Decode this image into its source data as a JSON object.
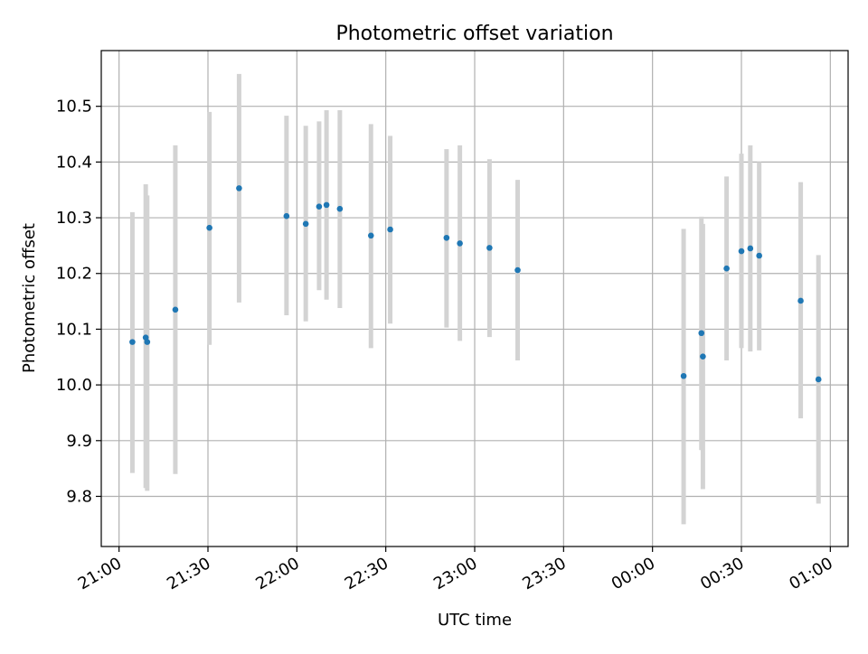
{
  "chart_data": {
    "type": "scatter",
    "title": "Photometric offset variation",
    "xlabel": "UTC time",
    "ylabel": "Photometric offset",
    "x_unit": "UTC time",
    "grid": true,
    "marker_color": "#1f77b4",
    "errorbar_color": "#d3d3d3",
    "xlim": [
      "20:54",
      "01:06"
    ],
    "ylim": [
      9.71,
      10.6
    ],
    "xticks": [
      "21:00",
      "21:30",
      "22:00",
      "22:30",
      "23:00",
      "23:30",
      "00:00",
      "00:30",
      "01:00"
    ],
    "yticks": [
      9.8,
      9.9,
      10.0,
      10.1,
      10.2,
      10.3,
      10.4,
      10.5
    ],
    "yticks_text": [
      "9.8",
      "9.9",
      "10.0",
      "10.1",
      "10.2",
      "10.3",
      "10.4",
      "10.5"
    ],
    "points": [
      {
        "x": "21:04.5",
        "y": 10.077,
        "ylow": 9.842,
        "yhigh": 10.31
      },
      {
        "x": "21:09",
        "y": 10.085,
        "ylow": 9.815,
        "yhigh": 10.36
      },
      {
        "x": "21:09.5",
        "y": 10.077,
        "ylow": 9.81,
        "yhigh": 10.34
      },
      {
        "x": "21:19",
        "y": 10.135,
        "ylow": 9.84,
        "yhigh": 10.43
      },
      {
        "x": "21:30.5",
        "y": 10.282,
        "ylow": 10.072,
        "yhigh": 10.49
      },
      {
        "x": "21:40.5",
        "y": 10.353,
        "ylow": 10.148,
        "yhigh": 10.558
      },
      {
        "x": "21:56.5",
        "y": 10.303,
        "ylow": 10.125,
        "yhigh": 10.483
      },
      {
        "x": "22:03",
        "y": 10.289,
        "ylow": 10.114,
        "yhigh": 10.465
      },
      {
        "x": "22:07.5",
        "y": 10.32,
        "ylow": 10.17,
        "yhigh": 10.473
      },
      {
        "x": "22:10",
        "y": 10.323,
        "ylow": 10.153,
        "yhigh": 10.493
      },
      {
        "x": "22:14.5",
        "y": 10.316,
        "ylow": 10.138,
        "yhigh": 10.493
      },
      {
        "x": "22:25",
        "y": 10.268,
        "ylow": 10.066,
        "yhigh": 10.468
      },
      {
        "x": "22:31.5",
        "y": 10.279,
        "ylow": 10.11,
        "yhigh": 10.447
      },
      {
        "x": "22:50.5",
        "y": 10.264,
        "ylow": 10.103,
        "yhigh": 10.423
      },
      {
        "x": "22:55",
        "y": 10.254,
        "ylow": 10.079,
        "yhigh": 10.43
      },
      {
        "x": "23:05",
        "y": 10.246,
        "ylow": 10.086,
        "yhigh": 10.405
      },
      {
        "x": "23:14.5",
        "y": 10.206,
        "ylow": 10.044,
        "yhigh": 10.368
      },
      {
        "x": "00:10.5",
        "y": 10.016,
        "ylow": 9.75,
        "yhigh": 10.28
      },
      {
        "x": "00:16.5",
        "y": 10.093,
        "ylow": 9.883,
        "yhigh": 10.302
      },
      {
        "x": "00:17",
        "y": 10.051,
        "ylow": 9.813,
        "yhigh": 10.289
      },
      {
        "x": "00:25",
        "y": 10.209,
        "ylow": 10.044,
        "yhigh": 10.374
      },
      {
        "x": "00:30",
        "y": 10.24,
        "ylow": 10.066,
        "yhigh": 10.415
      },
      {
        "x": "00:33",
        "y": 10.245,
        "ylow": 10.06,
        "yhigh": 10.43
      },
      {
        "x": "00:36",
        "y": 10.232,
        "ylow": 10.062,
        "yhigh": 10.4
      },
      {
        "x": "00:50",
        "y": 10.151,
        "ylow": 9.94,
        "yhigh": 10.364
      },
      {
        "x": "00:56",
        "y": 10.01,
        "ylow": 9.787,
        "yhigh": 10.233
      }
    ]
  }
}
